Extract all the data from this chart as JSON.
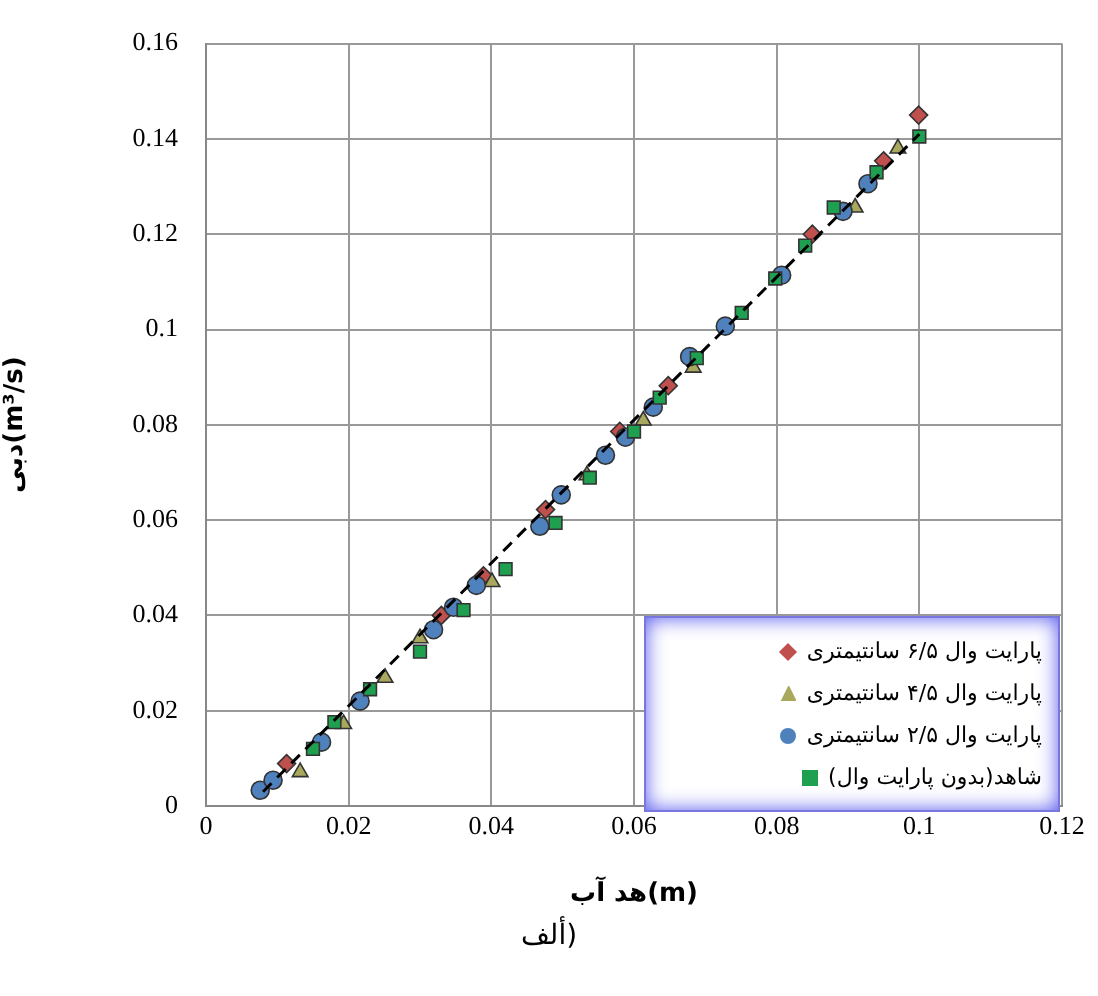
{
  "chart_data": {
    "type": "scatter",
    "xlabel": "هد آب(m)",
    "ylabel": "دبی(m³/s)",
    "annotations": [
      "ألف)"
    ],
    "xlim": [
      0,
      0.12
    ],
    "xticks": [
      0,
      0.02,
      0.04,
      0.06,
      0.08,
      0.1,
      0.12
    ],
    "ylim": [
      0,
      0.16
    ],
    "yticks": [
      0,
      0.02,
      0.04,
      0.06,
      0.08,
      0.1,
      0.12,
      0.14,
      0.16
    ],
    "grid": true,
    "legend": "bottom right",
    "series": [
      {
        "name": "پارایت وال ۶/۵ سانتیمتری",
        "color": "#c0504d",
        "marker": "diamond",
        "x": [
          0.0113,
          0.033,
          0.0389,
          0.0476,
          0.058,
          0.0648,
          0.085,
          0.095,
          0.0999
        ],
        "values": [
          0.0089,
          0.04,
          0.0483,
          0.0622,
          0.0786,
          0.0882,
          0.12,
          0.1354,
          0.145
        ]
      },
      {
        "name": "پارایت وال ۴/۵ سانتیمتری",
        "color": "#a9a95e",
        "marker": "triangle",
        "x": [
          0.0132,
          0.0193,
          0.0251,
          0.03,
          0.0401,
          0.0534,
          0.0613,
          0.0683,
          0.091,
          0.097
        ],
        "values": [
          0.0071,
          0.0172,
          0.0269,
          0.0352,
          0.047,
          0.0694,
          0.0809,
          0.092,
          0.1256,
          0.138
        ]
      },
      {
        "name": "پارایت وال ۲/۵ سانتیمتری",
        "color": "#4f81bd",
        "marker": "circle",
        "x": [
          0.0076,
          0.0094,
          0.0162,
          0.0216,
          0.0319,
          0.0347,
          0.0379,
          0.0468,
          0.0498,
          0.056,
          0.0588,
          0.0627,
          0.0678,
          0.0728,
          0.0807,
          0.0893,
          0.0928
        ],
        "values": [
          0.0033,
          0.0054,
          0.0134,
          0.022,
          0.037,
          0.0417,
          0.0463,
          0.0587,
          0.0653,
          0.0736,
          0.0774,
          0.0837,
          0.0943,
          0.1007,
          0.1114,
          0.1248,
          0.1306
        ]
      },
      {
        "name": "شاهد(بدون پارایت وال)",
        "color": "#1fa050",
        "marker": "square",
        "x": [
          0.015,
          0.018,
          0.023,
          0.03,
          0.0361,
          0.042,
          0.049,
          0.0538,
          0.06,
          0.0636,
          0.0688,
          0.0751,
          0.0798,
          0.084,
          0.088,
          0.094,
          0.1
        ],
        "values": [
          0.012,
          0.0176,
          0.0245,
          0.0324,
          0.0411,
          0.0497,
          0.0594,
          0.0689,
          0.0786,
          0.0857,
          0.094,
          0.1035,
          0.1107,
          0.1176,
          0.1256,
          0.133,
          0.1405
        ]
      },
      {
        "type": "line",
        "color": "#000000",
        "line_style": "dashed",
        "marker": "none",
        "x": [
          0.008,
          0.1
        ],
        "values": [
          0.003,
          0.141
        ]
      }
    ]
  }
}
